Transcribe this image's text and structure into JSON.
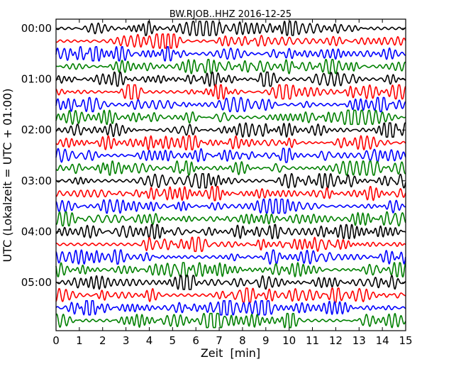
{
  "chart_data": {
    "type": "line",
    "title": "BW.RJOB..HHZ 2016-12-25",
    "xlabel": "Zeit  [min]",
    "ylabel": "UTC (Lokalzeit = UTC + 01:00)",
    "xlim": [
      0,
      15
    ],
    "x_ticks": [
      "0",
      "1",
      "2",
      "3",
      "4",
      "5",
      "6",
      "7",
      "8",
      "9",
      "10",
      "11",
      "12",
      "13",
      "14",
      "15"
    ],
    "y_ticks": [
      "00:00",
      "01:00",
      "02:00",
      "03:00",
      "04:00",
      "05:00"
    ],
    "rows_per_hour": 4,
    "row_count": 24,
    "minutes_per_row": 15,
    "series_colors": [
      "#000000",
      "#ff0000",
      "#0000ff",
      "#008000"
    ],
    "grid": false
  }
}
